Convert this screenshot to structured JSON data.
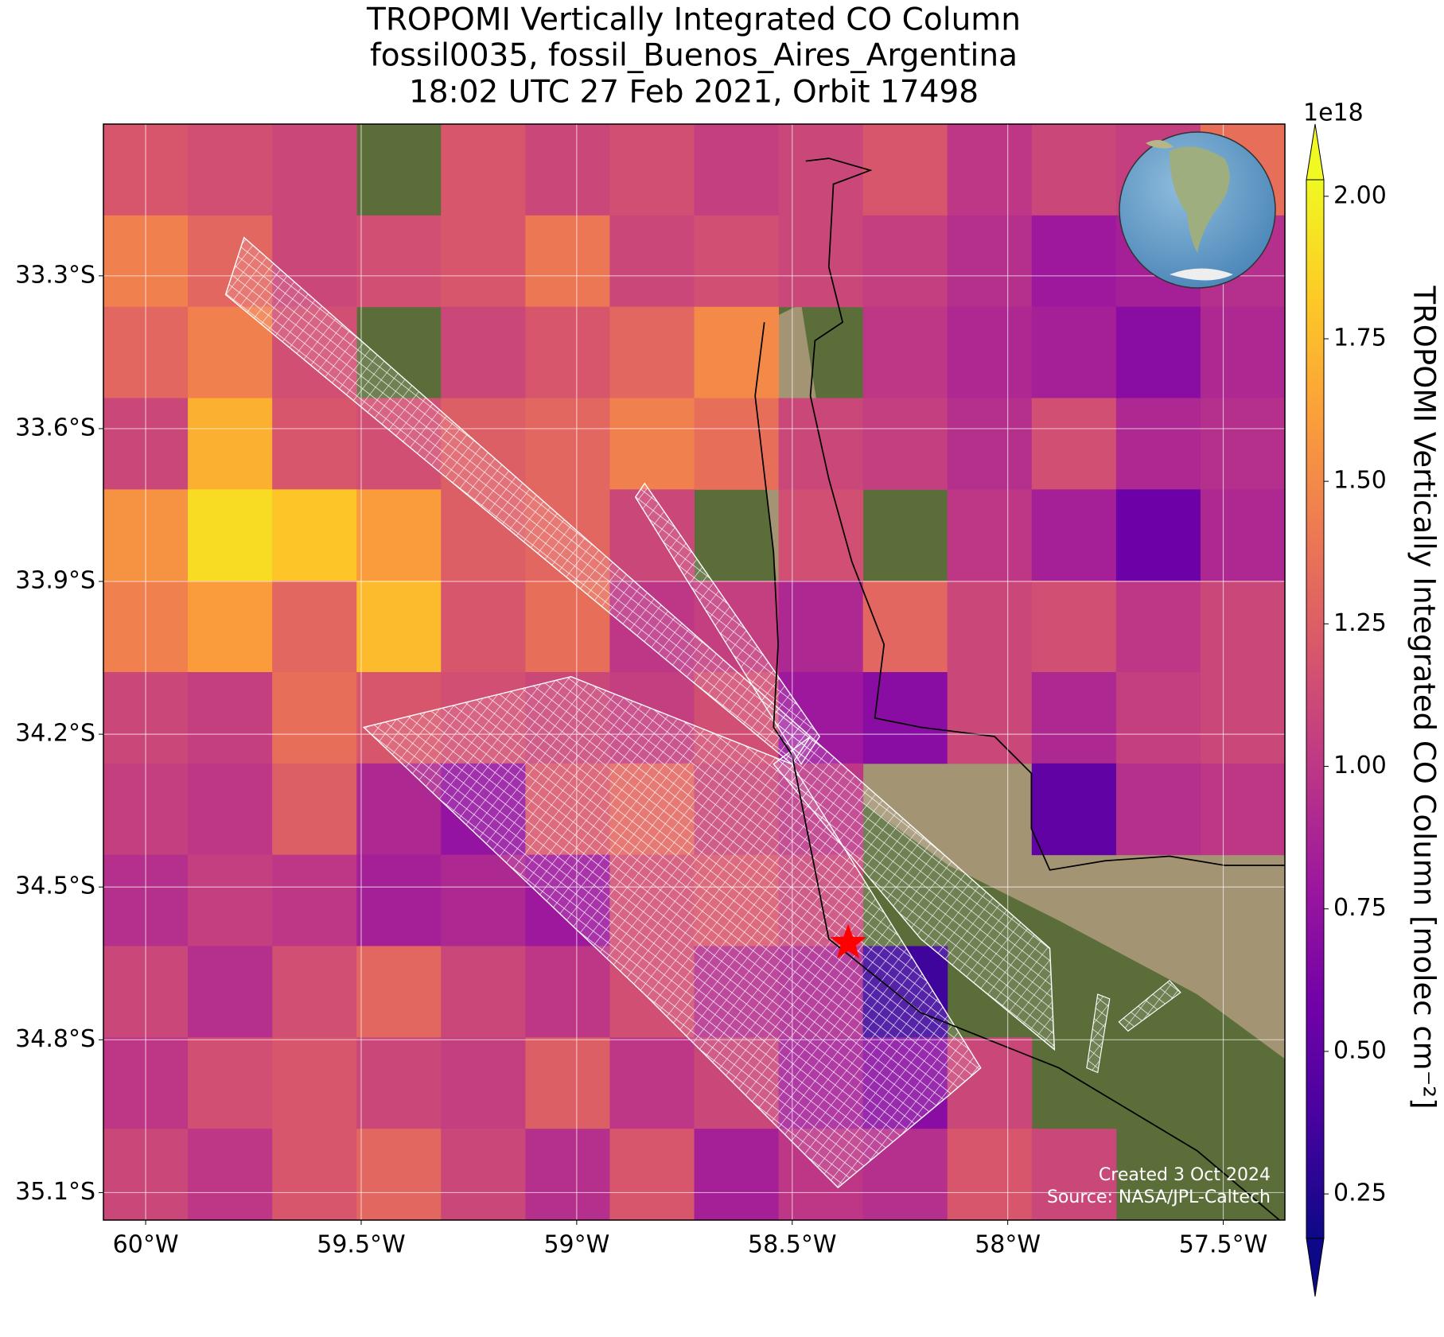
{
  "chart_data": {
    "type": "heatmap",
    "title": [
      "TROPOMI Vertically Integrated CO Column",
      "fossil0035, fossil_Buenos_Aires_Argentina",
      "18:02 UTC 27 Feb 2021, Orbit 17498"
    ],
    "xlim": [
      -60.098,
      -57.357
    ],
    "ylim": [
      -35.154,
      -33.002
    ],
    "xticks": [
      {
        "value": -60,
        "label": "60°W"
      },
      {
        "value": -59.5,
        "label": "59.5°W"
      },
      {
        "value": -59,
        "label": "59°W"
      },
      {
        "value": -58.5,
        "label": "58.5°W"
      },
      {
        "value": -58,
        "label": "58°W"
      },
      {
        "value": -57.5,
        "label": "57.5°W"
      }
    ],
    "yticks": [
      {
        "value": -33.3,
        "label": "33.3°S"
      },
      {
        "value": -33.6,
        "label": "33.6°S"
      },
      {
        "value": -33.9,
        "label": "33.9°S"
      },
      {
        "value": -34.2,
        "label": "34.2°S"
      },
      {
        "value": -34.5,
        "label": "34.5°S"
      },
      {
        "value": -34.8,
        "label": "34.8°S"
      },
      {
        "value": -35.1,
        "label": "35.1°S"
      }
    ],
    "grid": true,
    "values": [
      [
        1.2,
        1.15,
        1.1,
        null,
        1.2,
        1.1,
        1.15,
        1.05,
        1.1,
        1.2,
        1.0,
        1.1,
        1.05,
        1.35
      ],
      [
        1.45,
        1.3,
        1.1,
        1.15,
        1.2,
        1.4,
        1.1,
        1.15,
        1.1,
        1.05,
        0.95,
        0.8,
        0.85,
        0.95
      ],
      [
        1.3,
        1.45,
        1.15,
        null,
        1.1,
        1.2,
        1.3,
        1.5,
        null,
        1.0,
        0.9,
        0.85,
        0.7,
        0.9
      ],
      [
        1.1,
        1.7,
        1.2,
        1.15,
        1.25,
        1.3,
        1.45,
        1.35,
        1.1,
        1.05,
        0.95,
        1.15,
        0.9,
        0.95
      ],
      [
        1.55,
        1.9,
        1.8,
        1.6,
        1.25,
        1.3,
        1.1,
        null,
        1.15,
        null,
        1.0,
        0.85,
        0.55,
        0.9
      ],
      [
        1.45,
        1.6,
        1.3,
        1.75,
        1.2,
        1.35,
        1.0,
        1.05,
        0.9,
        1.3,
        1.1,
        1.15,
        1.0,
        1.1
      ],
      [
        1.1,
        1.05,
        1.35,
        1.2,
        1.15,
        1.1,
        1.05,
        1.15,
        0.8,
        0.7,
        1.1,
        0.9,
        1.05,
        1.1
      ],
      [
        1.05,
        1.0,
        1.25,
        0.9,
        0.75,
        1.2,
        1.3,
        1.1,
        1.0,
        null,
        null,
        0.5,
        0.95,
        1.0
      ],
      [
        0.95,
        1.05,
        1.0,
        0.85,
        0.9,
        0.8,
        1.15,
        1.2,
        1.1,
        null,
        null,
        null,
        null,
        null
      ],
      [
        1.1,
        0.95,
        1.15,
        1.3,
        1.1,
        1.0,
        1.15,
        0.95,
        0.9,
        0.35,
        null,
        null,
        null,
        null
      ],
      [
        1.0,
        1.15,
        1.2,
        1.1,
        1.05,
        1.25,
        1.0,
        1.1,
        0.85,
        0.7,
        1.1,
        null,
        null,
        null
      ],
      [
        1.1,
        1.0,
        1.2,
        1.3,
        1.1,
        0.95,
        1.2,
        0.85,
        1.0,
        0.95,
        1.2,
        1.1,
        null,
        null
      ]
    ],
    "colormap": [
      "#0d0887",
      "#46039f",
      "#7201a8",
      "#9c179e",
      "#bd3786",
      "#d8576b",
      "#ed7953",
      "#fb9f3a",
      "#fdca26",
      "#f0f921"
    ],
    "clim": [
      0.172,
      2.029
    ],
    "colorbar_ticks": [
      {
        "value": 0.25,
        "label": "0.25"
      },
      {
        "value": 0.5,
        "label": "0.50"
      },
      {
        "value": 0.75,
        "label": "0.75"
      },
      {
        "value": 1.0,
        "label": "1.00"
      },
      {
        "value": 1.25,
        "label": "1.25"
      },
      {
        "value": 1.5,
        "label": "1.50"
      },
      {
        "value": 1.75,
        "label": "1.75"
      },
      {
        "value": 2.0,
        "label": "2.00"
      }
    ],
    "colorbar_offset": "1e18",
    "colorbar_label": "TROPOMI Vertically Integrated CO Column [molec cm⁻²]",
    "site": {
      "lon": -58.37,
      "lat": -34.61
    },
    "annotations": [
      "Created 3 Oct 2024",
      "Source: NASA/JPL-Caltech"
    ]
  }
}
